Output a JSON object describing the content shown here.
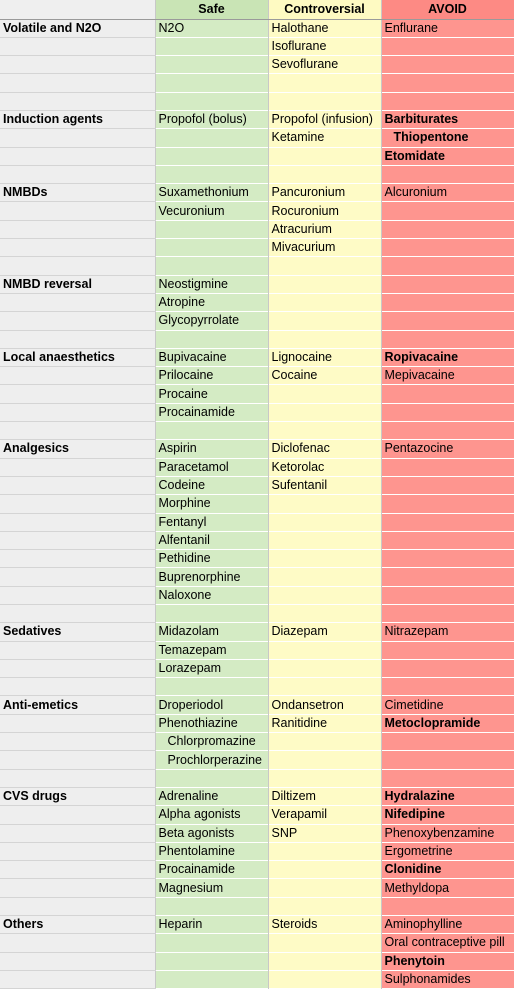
{
  "headers": [
    "",
    "Safe",
    "Controversial",
    "AVOID"
  ],
  "rows": [
    {
      "cat": "Volatile and N2O",
      "safe": "N2O",
      "contro": "Halothane",
      "avoid": "Enflurane"
    },
    {
      "cat": "",
      "safe": "",
      "contro": "Isoflurane",
      "avoid": ""
    },
    {
      "cat": "",
      "safe": "",
      "contro": "Sevoflurane",
      "avoid": ""
    },
    {
      "cat": "",
      "safe": "",
      "contro": "",
      "avoid": ""
    },
    {
      "cat": "",
      "safe": "",
      "contro": "",
      "avoid": ""
    },
    {
      "cat": "Induction agents",
      "safe": "Propofol (bolus)",
      "contro": "Propofol (infusion)",
      "avoid": "Barbiturates",
      "avoid_bold": true
    },
    {
      "cat": "",
      "safe": "",
      "contro": "Ketamine",
      "avoid": "Thiopentone",
      "avoid_bold": true,
      "avoid_indent": true
    },
    {
      "cat": "",
      "safe": "",
      "contro": "",
      "avoid": "Etomidate",
      "avoid_bold": true
    },
    {
      "cat": "",
      "safe": "",
      "contro": "",
      "avoid": ""
    },
    {
      "cat": "NMBDs",
      "safe": "Suxamethonium",
      "contro": "Pancuronium",
      "avoid": "Alcuronium"
    },
    {
      "cat": "",
      "safe": "Vecuronium",
      "contro": "Rocuronium",
      "avoid": ""
    },
    {
      "cat": "",
      "safe": "",
      "contro": "Atracurium",
      "avoid": ""
    },
    {
      "cat": "",
      "safe": "",
      "contro": "Mivacurium",
      "avoid": ""
    },
    {
      "cat": "",
      "safe": "",
      "contro": "",
      "avoid": ""
    },
    {
      "cat": "NMBD reversal",
      "safe": "Neostigmine",
      "contro": "",
      "avoid": ""
    },
    {
      "cat": "",
      "safe": "Atropine",
      "contro": "",
      "avoid": ""
    },
    {
      "cat": "",
      "safe": "Glycopyrrolate",
      "contro": "",
      "avoid": ""
    },
    {
      "cat": "",
      "safe": "",
      "contro": "",
      "avoid": ""
    },
    {
      "cat": "Local anaesthetics",
      "safe": "Bupivacaine",
      "contro": "Lignocaine",
      "avoid": "Ropivacaine",
      "avoid_bold": true
    },
    {
      "cat": "",
      "safe": "Prilocaine",
      "contro": "Cocaine",
      "avoid": "Mepivacaine"
    },
    {
      "cat": "",
      "safe": "Procaine",
      "contro": "",
      "avoid": ""
    },
    {
      "cat": "",
      "safe": "Procainamide",
      "contro": "",
      "avoid": ""
    },
    {
      "cat": "",
      "safe": "",
      "contro": "",
      "avoid": ""
    },
    {
      "cat": "Analgesics",
      "safe": "Aspirin",
      "contro": "Diclofenac",
      "avoid": "Pentazocine"
    },
    {
      "cat": "",
      "safe": "Paracetamol",
      "contro": "Ketorolac",
      "avoid": ""
    },
    {
      "cat": "",
      "safe": "Codeine",
      "contro": "Sufentanil",
      "avoid": ""
    },
    {
      "cat": "",
      "safe": "Morphine",
      "contro": "",
      "avoid": ""
    },
    {
      "cat": "",
      "safe": "Fentanyl",
      "contro": "",
      "avoid": ""
    },
    {
      "cat": "",
      "safe": "Alfentanil",
      "contro": "",
      "avoid": ""
    },
    {
      "cat": "",
      "safe": "Pethidine",
      "contro": "",
      "avoid": ""
    },
    {
      "cat": "",
      "safe": "Buprenorphine",
      "contro": "",
      "avoid": ""
    },
    {
      "cat": "",
      "safe": "Naloxone",
      "contro": "",
      "avoid": ""
    },
    {
      "cat": "",
      "safe": "",
      "contro": "",
      "avoid": ""
    },
    {
      "cat": "Sedatives",
      "safe": "Midazolam",
      "contro": "Diazepam",
      "avoid": "Nitrazepam"
    },
    {
      "cat": "",
      "safe": "Temazepam",
      "contro": "",
      "avoid": ""
    },
    {
      "cat": "",
      "safe": "Lorazepam",
      "contro": "",
      "avoid": ""
    },
    {
      "cat": "",
      "safe": "",
      "contro": "",
      "avoid": ""
    },
    {
      "cat": "Anti-emetics",
      "safe": "Droperiodol",
      "contro": "Ondansetron",
      "avoid": "Cimetidine"
    },
    {
      "cat": "",
      "safe": "Phenothiazine",
      "contro": "Ranitidine",
      "avoid": "Metoclopramide",
      "avoid_bold": true
    },
    {
      "cat": "",
      "safe": "Chlorpromazine",
      "safe_indent": true,
      "contro": "",
      "avoid": ""
    },
    {
      "cat": "",
      "safe": "Prochlorperazine",
      "safe_indent": true,
      "contro": "",
      "avoid": ""
    },
    {
      "cat": "",
      "safe": "",
      "contro": "",
      "avoid": ""
    },
    {
      "cat": "CVS drugs",
      "safe": "Adrenaline",
      "contro": "Diltizem",
      "avoid": "Hydralazine",
      "avoid_bold": true
    },
    {
      "cat": "",
      "safe": "Alpha agonists",
      "contro": "Verapamil",
      "avoid": "Nifedipine",
      "avoid_bold": true
    },
    {
      "cat": "",
      "safe": "Beta agonists",
      "contro": "SNP",
      "avoid": "Phenoxybenzamine"
    },
    {
      "cat": "",
      "safe": "Phentolamine",
      "contro": "",
      "avoid": "Ergometrine"
    },
    {
      "cat": "",
      "safe": "Procainamide",
      "contro": "",
      "avoid": "Clonidine",
      "avoid_bold": true
    },
    {
      "cat": "",
      "safe": "Magnesium",
      "contro": "",
      "avoid": "Methyldopa"
    },
    {
      "cat": "",
      "safe": "",
      "contro": "",
      "avoid": ""
    },
    {
      "cat": "Others",
      "safe": "Heparin",
      "contro": "Steroids",
      "avoid": "Aminophylline"
    },
    {
      "cat": "",
      "safe": "",
      "contro": "",
      "avoid": "Oral contraceptive pill"
    },
    {
      "cat": "",
      "safe": "",
      "contro": "",
      "avoid": "Phenytoin",
      "avoid_bold": true
    },
    {
      "cat": "",
      "safe": "",
      "contro": "",
      "avoid": "Sulphonamides"
    }
  ]
}
